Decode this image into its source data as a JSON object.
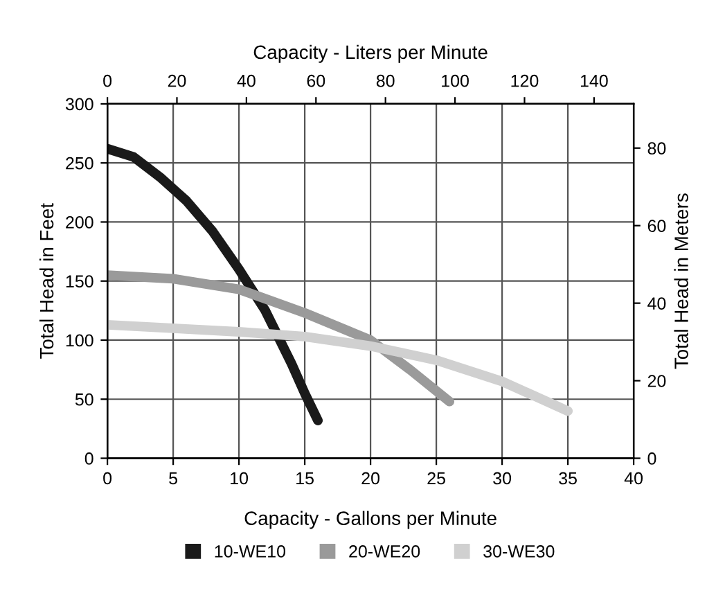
{
  "chart_data": {
    "type": "line",
    "x2label": "Capacity - Liters per Minute",
    "xlabel": "Capacity - Gallons per Minute",
    "ylabel": "Total Head in Feet",
    "y2label": "Total Head in Meters",
    "xlim": [
      0,
      40
    ],
    "xticks": [
      0,
      5,
      10,
      15,
      20,
      25,
      30,
      35,
      40
    ],
    "ylim": [
      0,
      300
    ],
    "yticks": [
      0,
      50,
      100,
      150,
      200,
      250,
      300
    ],
    "x2lim": [
      0,
      151.4
    ],
    "x2ticks": [
      0,
      20,
      40,
      60,
      80,
      100,
      120,
      140
    ],
    "y2lim": [
      0,
      91.4
    ],
    "y2ticks": [
      0,
      20,
      40,
      60,
      80
    ],
    "grid": true,
    "legend": "bottom",
    "marker": "none",
    "line_style": "solid",
    "series": [
      {
        "name": "10-WE10",
        "color": "#1a1a1a",
        "x": [
          0,
          2,
          4,
          6,
          8,
          10,
          12,
          14,
          15,
          16
        ],
        "values": [
          262,
          255,
          238,
          218,
          192,
          160,
          125,
          80,
          55,
          32
        ]
      },
      {
        "name": "20-WE20",
        "color": "#9a9a9a",
        "x": [
          0,
          5,
          10,
          15,
          20,
          23,
          26
        ],
        "values": [
          155,
          152,
          143,
          123,
          100,
          75,
          48
        ]
      },
      {
        "name": "30-WE30",
        "color": "#d0d0d0",
        "x": [
          0,
          5,
          10,
          15,
          20,
          25,
          30,
          35
        ],
        "values": [
          113,
          110,
          107,
          103,
          95,
          83,
          65,
          40
        ]
      }
    ]
  }
}
